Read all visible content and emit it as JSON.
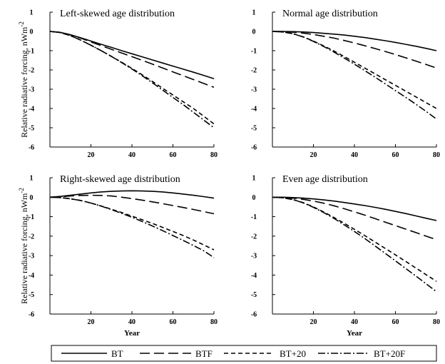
{
  "chart_data": [
    {
      "type": "line",
      "title": "Left-skewed age distribution",
      "xlabel": "",
      "ylabel": "Relative radiative forcing, nWm-2",
      "xlim": [
        0,
        80
      ],
      "ylim": [
        -6,
        1
      ],
      "x_ticks": [
        "20",
        "40",
        "60",
        "80"
      ],
      "y_ticks": [
        "1",
        "0",
        "-1",
        "-2",
        "-3",
        "-4",
        "-5",
        "-6"
      ],
      "grid": false,
      "x": [
        0,
        5,
        10,
        15,
        20,
        25,
        30,
        35,
        40,
        45,
        50,
        55,
        60,
        65,
        70,
        75,
        80
      ],
      "series": [
        {
          "name": "BT",
          "values": [
            0,
            -0.05,
            -0.17,
            -0.33,
            -0.5,
            -0.67,
            -0.83,
            -1.0,
            -1.16,
            -1.32,
            -1.48,
            -1.64,
            -1.8,
            -1.96,
            -2.12,
            -2.28,
            -2.45
          ]
        },
        {
          "name": "BTF",
          "values": [
            0,
            -0.05,
            -0.18,
            -0.35,
            -0.55,
            -0.74,
            -0.93,
            -1.12,
            -1.31,
            -1.5,
            -1.7,
            -1.9,
            -2.1,
            -2.3,
            -2.5,
            -2.7,
            -2.9
          ]
        },
        {
          "name": "BT+20",
          "values": [
            0,
            -0.06,
            -0.22,
            -0.45,
            -0.72,
            -1.0,
            -1.3,
            -1.6,
            -1.92,
            -2.25,
            -2.6,
            -2.95,
            -3.3,
            -3.65,
            -4.0,
            -4.4,
            -4.8
          ]
        },
        {
          "name": "BT+20F",
          "values": [
            0,
            -0.06,
            -0.22,
            -0.45,
            -0.72,
            -1.0,
            -1.3,
            -1.62,
            -1.95,
            -2.3,
            -2.67,
            -3.05,
            -3.43,
            -3.8,
            -4.2,
            -4.6,
            -5.0
          ]
        }
      ]
    },
    {
      "type": "line",
      "title": "Normal age distribution",
      "xlabel": "",
      "ylabel": "",
      "xlim": [
        0,
        80
      ],
      "ylim": [
        -6,
        1
      ],
      "x_ticks": [
        "20",
        "40",
        "60",
        "80"
      ],
      "y_ticks": [
        "1",
        "0",
        "-1",
        "-2",
        "-3",
        "-4",
        "-5",
        "-6"
      ],
      "grid": false,
      "x": [
        0,
        5,
        10,
        15,
        20,
        25,
        30,
        35,
        40,
        45,
        50,
        55,
        60,
        65,
        70,
        75,
        80
      ],
      "series": [
        {
          "name": "BT",
          "values": [
            0,
            0,
            -0.01,
            -0.03,
            -0.06,
            -0.1,
            -0.14,
            -0.19,
            -0.25,
            -0.32,
            -0.4,
            -0.48,
            -0.57,
            -0.67,
            -0.77,
            -0.88,
            -1.0
          ]
        },
        {
          "name": "BTF",
          "values": [
            0,
            -0.01,
            -0.04,
            -0.09,
            -0.16,
            -0.25,
            -0.35,
            -0.47,
            -0.6,
            -0.74,
            -0.89,
            -1.04,
            -1.2,
            -1.37,
            -1.54,
            -1.72,
            -1.9
          ]
        },
        {
          "name": "BT+20",
          "values": [
            0,
            -0.03,
            -0.12,
            -0.28,
            -0.5,
            -0.75,
            -1.02,
            -1.3,
            -1.6,
            -1.9,
            -2.2,
            -2.5,
            -2.8,
            -3.1,
            -3.4,
            -3.7,
            -4.0
          ]
        },
        {
          "name": "BT+20F",
          "values": [
            0,
            -0.03,
            -0.12,
            -0.29,
            -0.52,
            -0.78,
            -1.07,
            -1.38,
            -1.7,
            -2.03,
            -2.37,
            -2.72,
            -3.07,
            -3.42,
            -3.78,
            -4.15,
            -4.55
          ]
        }
      ]
    },
    {
      "type": "line",
      "title": "Right-skewed age distribution",
      "xlabel": "Year",
      "ylabel": "Relative radiative forcing, nWm-2",
      "xlim": [
        0,
        80
      ],
      "ylim": [
        -6,
        1
      ],
      "x_ticks": [
        "20",
        "40",
        "60",
        "80"
      ],
      "y_ticks": [
        "1",
        "0",
        "-1",
        "-2",
        "-3",
        "-4",
        "-5",
        "-6"
      ],
      "grid": false,
      "x": [
        0,
        5,
        10,
        15,
        20,
        25,
        30,
        35,
        40,
        45,
        50,
        55,
        60,
        65,
        70,
        75,
        80
      ],
      "series": [
        {
          "name": "BT",
          "values": [
            0,
            0.04,
            0.1,
            0.16,
            0.22,
            0.27,
            0.3,
            0.32,
            0.33,
            0.32,
            0.3,
            0.27,
            0.22,
            0.16,
            0.1,
            0.03,
            -0.05
          ]
        },
        {
          "name": "BTF",
          "values": [
            0,
            0.02,
            0.06,
            0.09,
            0.1,
            0.09,
            0.06,
            0.0,
            -0.07,
            -0.15,
            -0.24,
            -0.33,
            -0.43,
            -0.53,
            -0.63,
            -0.74,
            -0.85
          ]
        },
        {
          "name": "BT+20",
          "values": [
            0,
            -0.02,
            -0.08,
            -0.17,
            -0.3,
            -0.45,
            -0.62,
            -0.79,
            -0.97,
            -1.16,
            -1.35,
            -1.55,
            -1.76,
            -1.97,
            -2.2,
            -2.45,
            -2.7
          ]
        },
        {
          "name": "BT+20F",
          "values": [
            0,
            -0.02,
            -0.08,
            -0.17,
            -0.3,
            -0.46,
            -0.64,
            -0.83,
            -1.03,
            -1.25,
            -1.48,
            -1.72,
            -1.97,
            -2.22,
            -2.48,
            -2.75,
            -3.1
          ]
        }
      ]
    },
    {
      "type": "line",
      "title": "Even age distribution",
      "xlabel": "Year",
      "ylabel": "",
      "xlim": [
        0,
        80
      ],
      "ylim": [
        -6,
        1
      ],
      "x_ticks": [
        "20",
        "40",
        "60",
        "80"
      ],
      "y_ticks": [
        "1",
        "0",
        "-1",
        "-2",
        "-3",
        "-4",
        "-5",
        "-6"
      ],
      "grid": false,
      "x": [
        0,
        5,
        10,
        15,
        20,
        25,
        30,
        35,
        40,
        45,
        50,
        55,
        60,
        65,
        70,
        75,
        80
      ],
      "series": [
        {
          "name": "BT",
          "values": [
            0,
            0,
            -0.02,
            -0.05,
            -0.09,
            -0.14,
            -0.2,
            -0.27,
            -0.35,
            -0.43,
            -0.52,
            -0.62,
            -0.73,
            -0.84,
            -0.96,
            -1.08,
            -1.2
          ]
        },
        {
          "name": "BTF",
          "values": [
            0,
            -0.01,
            -0.05,
            -0.11,
            -0.2,
            -0.31,
            -0.44,
            -0.59,
            -0.75,
            -0.92,
            -1.1,
            -1.28,
            -1.46,
            -1.64,
            -1.82,
            -2.0,
            -2.18
          ]
        },
        {
          "name": "BT+20",
          "values": [
            0,
            -0.03,
            -0.12,
            -0.28,
            -0.5,
            -0.76,
            -1.04,
            -1.34,
            -1.65,
            -1.97,
            -2.3,
            -2.63,
            -2.96,
            -3.3,
            -3.64,
            -3.98,
            -4.32
          ]
        },
        {
          "name": "BT+20F",
          "values": [
            0,
            -0.03,
            -0.12,
            -0.29,
            -0.52,
            -0.79,
            -1.09,
            -1.42,
            -1.76,
            -2.12,
            -2.5,
            -2.88,
            -3.27,
            -3.66,
            -4.05,
            -4.45,
            -4.85
          ]
        }
      ]
    }
  ],
  "legend": {
    "position": "bottom",
    "items": [
      {
        "label": "BT",
        "style": "solid"
      },
      {
        "label": "BTF",
        "style": "long-dash"
      },
      {
        "label": "BT+20",
        "style": "short-dash"
      },
      {
        "label": "BT+20F",
        "style": "dash-dot"
      }
    ]
  },
  "colors": {
    "line": "#000000",
    "background": "#ffffff"
  }
}
